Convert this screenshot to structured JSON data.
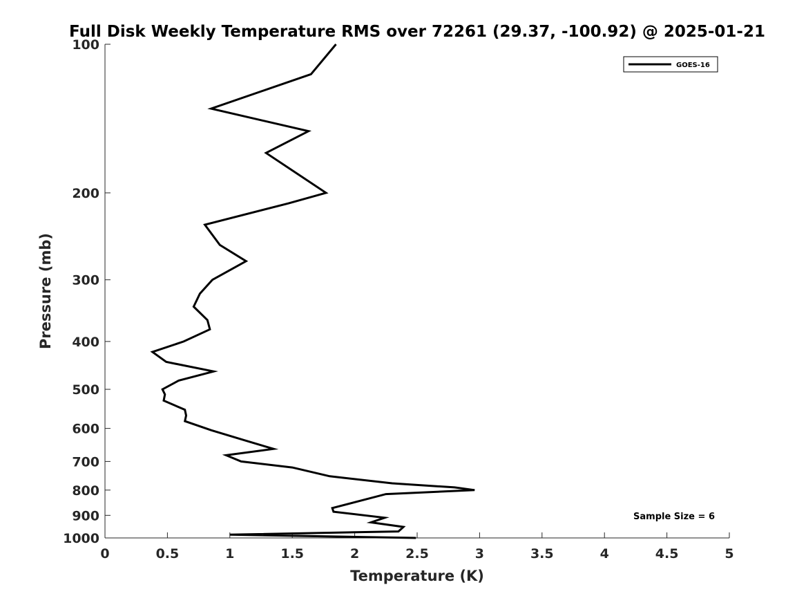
{
  "chart_data": {
    "type": "line",
    "title": "Full Disk Weekly Temperature RMS over 72261 (29.37, -100.92) @ 2025-01-21",
    "xlabel": "Temperature (K)",
    "ylabel": "Pressure (mb)",
    "xlim": [
      0,
      5
    ],
    "ylim": [
      100,
      1000
    ],
    "y_scale": "log",
    "y_reversed": true,
    "x_ticks": [
      "0",
      "0.5",
      "1",
      "1.5",
      "2",
      "2.5",
      "3",
      "3.5",
      "4",
      "4.5",
      "5"
    ],
    "y_ticks": [
      "100",
      "200",
      "300",
      "400",
      "500",
      "600",
      "700",
      "800",
      "900",
      "1000"
    ],
    "grid": false,
    "legend_position": "top-right",
    "annotation": "Sample Size = 6",
    "line_color": "#000000",
    "series": [
      {
        "name": "GOES-16",
        "x": [
          1.85,
          1.65,
          0.85,
          1.63,
          1.29,
          1.77,
          1.47,
          0.8,
          0.92,
          1.13,
          0.86,
          0.76,
          0.71,
          0.82,
          0.84,
          0.63,
          0.38,
          0.49,
          0.87,
          0.59,
          0.46,
          0.48,
          0.47,
          0.64,
          0.65,
          0.64,
          0.85,
          1.17,
          1.35,
          0.97,
          1.09,
          1.5,
          1.8,
          2.3,
          2.8,
          2.96,
          2.25,
          1.82,
          1.83,
          2.24,
          2.13,
          2.39,
          2.35,
          1.0,
          2.49
        ],
        "y": [
          100,
          115,
          135,
          150,
          166,
          200,
          210,
          232,
          255,
          275,
          300,
          320,
          340,
          362,
          378,
          400,
          420,
          440,
          460,
          480,
          500,
          512,
          527,
          550,
          565,
          580,
          605,
          640,
          660,
          680,
          700,
          720,
          750,
          775,
          790,
          800,
          815,
          870,
          885,
          910,
          930,
          950,
          970,
          985,
          1000
        ]
      }
    ]
  }
}
